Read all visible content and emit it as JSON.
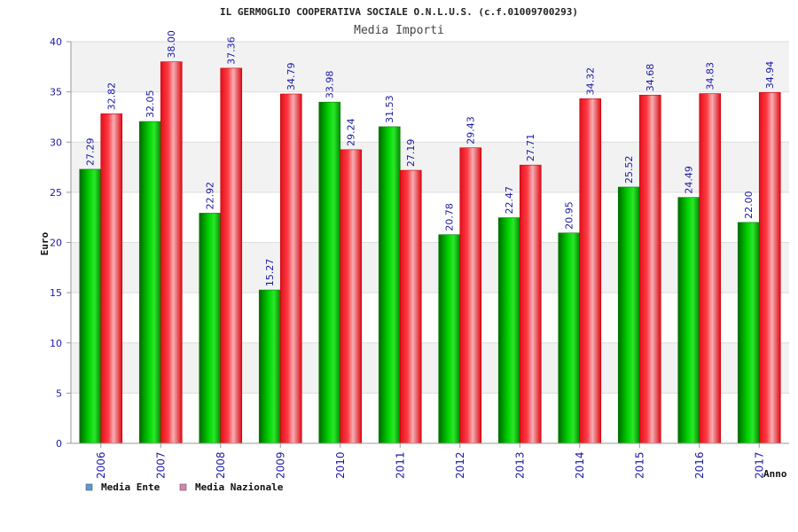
{
  "chart_data": {
    "type": "bar",
    "title": "IL GERMOGLIO COOPERATIVA SOCIALE O.N.L.U.S. (c.f.01009700293)",
    "subtitle": "Media Importi",
    "xlabel": "Anno",
    "ylabel": "Euro",
    "ylim": [
      0,
      40
    ],
    "yticks": [
      0,
      5,
      10,
      15,
      20,
      25,
      30,
      35,
      40
    ],
    "grid": true,
    "legend_position": "bottom-left",
    "categories": [
      "2006",
      "2007",
      "2008",
      "2009",
      "2010",
      "2011",
      "2012",
      "2013",
      "2014",
      "2015",
      "2016",
      "2017"
    ],
    "series": [
      {
        "name": "Media Ente",
        "legend_color": "#5b9bd5",
        "bar_color": "#00b000",
        "values": [
          27.29,
          32.05,
          22.92,
          15.27,
          33.98,
          31.53,
          20.78,
          22.47,
          20.95,
          25.52,
          24.49,
          22.0
        ],
        "labels": [
          "27.29",
          "32.05",
          "22.92",
          "15.27",
          "33.98",
          "31.53",
          "20.78",
          "22.47",
          "20.95",
          "25.52",
          "24.49",
          "22.00"
        ]
      },
      {
        "name": "Media Nazionale",
        "legend_color": "#d983b5",
        "bar_color": "#e8101a",
        "values": [
          32.82,
          38.0,
          37.36,
          34.79,
          29.24,
          27.19,
          29.43,
          27.71,
          34.32,
          34.68,
          34.83,
          34.94
        ],
        "labels": [
          "32.82",
          "38.00",
          "37.36",
          "34.79",
          "29.24",
          "27.19",
          "29.43",
          "27.71",
          "34.32",
          "34.68",
          "34.83",
          "34.94"
        ]
      }
    ]
  },
  "colors": {
    "tick_text": "#1a1aa6",
    "band_light": "#f2f2f2",
    "band_white": "#ffffff"
  }
}
